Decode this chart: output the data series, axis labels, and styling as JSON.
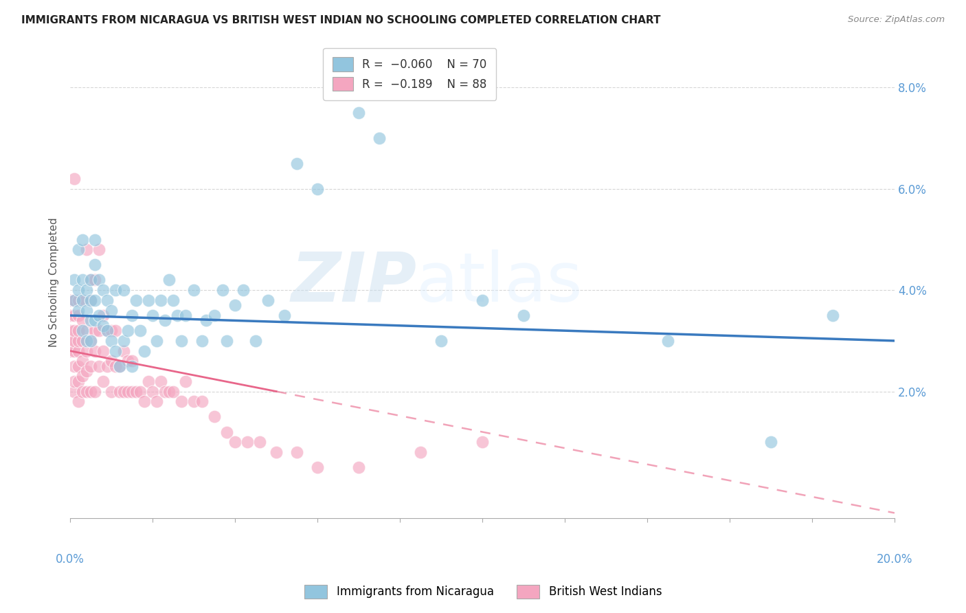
{
  "title": "IMMIGRANTS FROM NICARAGUA VS BRITISH WEST INDIAN NO SCHOOLING COMPLETED CORRELATION CHART",
  "source": "Source: ZipAtlas.com",
  "ylabel": "No Schooling Completed",
  "right_yticks": [
    "8.0%",
    "6.0%",
    "4.0%",
    "2.0%"
  ],
  "right_ytick_vals": [
    0.08,
    0.06,
    0.04,
    0.02
  ],
  "xlim": [
    0.0,
    0.2
  ],
  "ylim": [
    -0.005,
    0.088
  ],
  "color_blue": "#92c5de",
  "color_pink": "#f4a6c0",
  "color_blue_line": "#3a7abf",
  "color_pink_line": "#e8668a",
  "color_axis_text": "#5b9bd5",
  "legend_label1": "Immigrants from Nicaragua",
  "legend_label2": "British West Indians",
  "blue_line_x0": 0.0,
  "blue_line_y0": 0.035,
  "blue_line_x1": 0.2,
  "blue_line_y1": 0.03,
  "pink_line_solid_x0": 0.0,
  "pink_line_solid_y0": 0.028,
  "pink_line_solid_x1": 0.05,
  "pink_line_solid_y1": 0.02,
  "pink_line_dash_x0": 0.05,
  "pink_line_dash_y0": 0.02,
  "pink_line_dash_x1": 0.2,
  "pink_line_dash_y1": -0.004,
  "blue_x": [
    0.001,
    0.001,
    0.002,
    0.002,
    0.002,
    0.003,
    0.003,
    0.003,
    0.003,
    0.004,
    0.004,
    0.004,
    0.005,
    0.005,
    0.005,
    0.005,
    0.006,
    0.006,
    0.006,
    0.006,
    0.007,
    0.007,
    0.008,
    0.008,
    0.009,
    0.009,
    0.01,
    0.01,
    0.011,
    0.011,
    0.012,
    0.013,
    0.013,
    0.014,
    0.015,
    0.015,
    0.016,
    0.017,
    0.018,
    0.019,
    0.02,
    0.021,
    0.022,
    0.023,
    0.024,
    0.025,
    0.026,
    0.027,
    0.028,
    0.03,
    0.032,
    0.033,
    0.035,
    0.037,
    0.038,
    0.04,
    0.042,
    0.045,
    0.048,
    0.052,
    0.055,
    0.06,
    0.07,
    0.075,
    0.09,
    0.1,
    0.11,
    0.145,
    0.17,
    0.185
  ],
  "blue_y": [
    0.038,
    0.042,
    0.036,
    0.04,
    0.048,
    0.032,
    0.038,
    0.042,
    0.05,
    0.03,
    0.036,
    0.04,
    0.03,
    0.034,
    0.038,
    0.042,
    0.034,
    0.038,
    0.045,
    0.05,
    0.035,
    0.042,
    0.033,
    0.04,
    0.032,
    0.038,
    0.03,
    0.036,
    0.028,
    0.04,
    0.025,
    0.03,
    0.04,
    0.032,
    0.025,
    0.035,
    0.038,
    0.032,
    0.028,
    0.038,
    0.035,
    0.03,
    0.038,
    0.034,
    0.042,
    0.038,
    0.035,
    0.03,
    0.035,
    0.04,
    0.03,
    0.034,
    0.035,
    0.04,
    0.03,
    0.037,
    0.04,
    0.03,
    0.038,
    0.035,
    0.065,
    0.06,
    0.075,
    0.07,
    0.03,
    0.038,
    0.035,
    0.03,
    0.01,
    0.035
  ],
  "pink_x": [
    0.0,
    0.0,
    0.0,
    0.0,
    0.0,
    0.001,
    0.001,
    0.001,
    0.001,
    0.001,
    0.001,
    0.001,
    0.001,
    0.001,
    0.002,
    0.002,
    0.002,
    0.002,
    0.002,
    0.002,
    0.002,
    0.002,
    0.003,
    0.003,
    0.003,
    0.003,
    0.003,
    0.003,
    0.004,
    0.004,
    0.004,
    0.004,
    0.004,
    0.005,
    0.005,
    0.005,
    0.005,
    0.005,
    0.006,
    0.006,
    0.006,
    0.006,
    0.007,
    0.007,
    0.007,
    0.008,
    0.008,
    0.008,
    0.009,
    0.009,
    0.01,
    0.01,
    0.01,
    0.011,
    0.011,
    0.012,
    0.012,
    0.013,
    0.013,
    0.014,
    0.014,
    0.015,
    0.015,
    0.016,
    0.017,
    0.018,
    0.019,
    0.02,
    0.021,
    0.022,
    0.023,
    0.024,
    0.025,
    0.027,
    0.028,
    0.03,
    0.032,
    0.035,
    0.038,
    0.04,
    0.043,
    0.046,
    0.05,
    0.055,
    0.06,
    0.07,
    0.085,
    0.1
  ],
  "pink_y": [
    0.028,
    0.03,
    0.032,
    0.035,
    0.038,
    0.02,
    0.022,
    0.025,
    0.028,
    0.03,
    0.032,
    0.035,
    0.038,
    0.062,
    0.018,
    0.022,
    0.025,
    0.028,
    0.03,
    0.032,
    0.035,
    0.038,
    0.02,
    0.023,
    0.026,
    0.03,
    0.034,
    0.038,
    0.02,
    0.024,
    0.028,
    0.032,
    0.048,
    0.02,
    0.025,
    0.03,
    0.038,
    0.042,
    0.02,
    0.028,
    0.032,
    0.042,
    0.025,
    0.032,
    0.048,
    0.022,
    0.028,
    0.035,
    0.025,
    0.032,
    0.02,
    0.026,
    0.032,
    0.025,
    0.032,
    0.02,
    0.025,
    0.02,
    0.028,
    0.02,
    0.026,
    0.02,
    0.026,
    0.02,
    0.02,
    0.018,
    0.022,
    0.02,
    0.018,
    0.022,
    0.02,
    0.02,
    0.02,
    0.018,
    0.022,
    0.018,
    0.018,
    0.015,
    0.012,
    0.01,
    0.01,
    0.01,
    0.008,
    0.008,
    0.005,
    0.005,
    0.008,
    0.01
  ],
  "watermark_zip": "ZIP",
  "watermark_atlas": "atlas",
  "background_color": "#ffffff",
  "grid_color": "#cccccc"
}
